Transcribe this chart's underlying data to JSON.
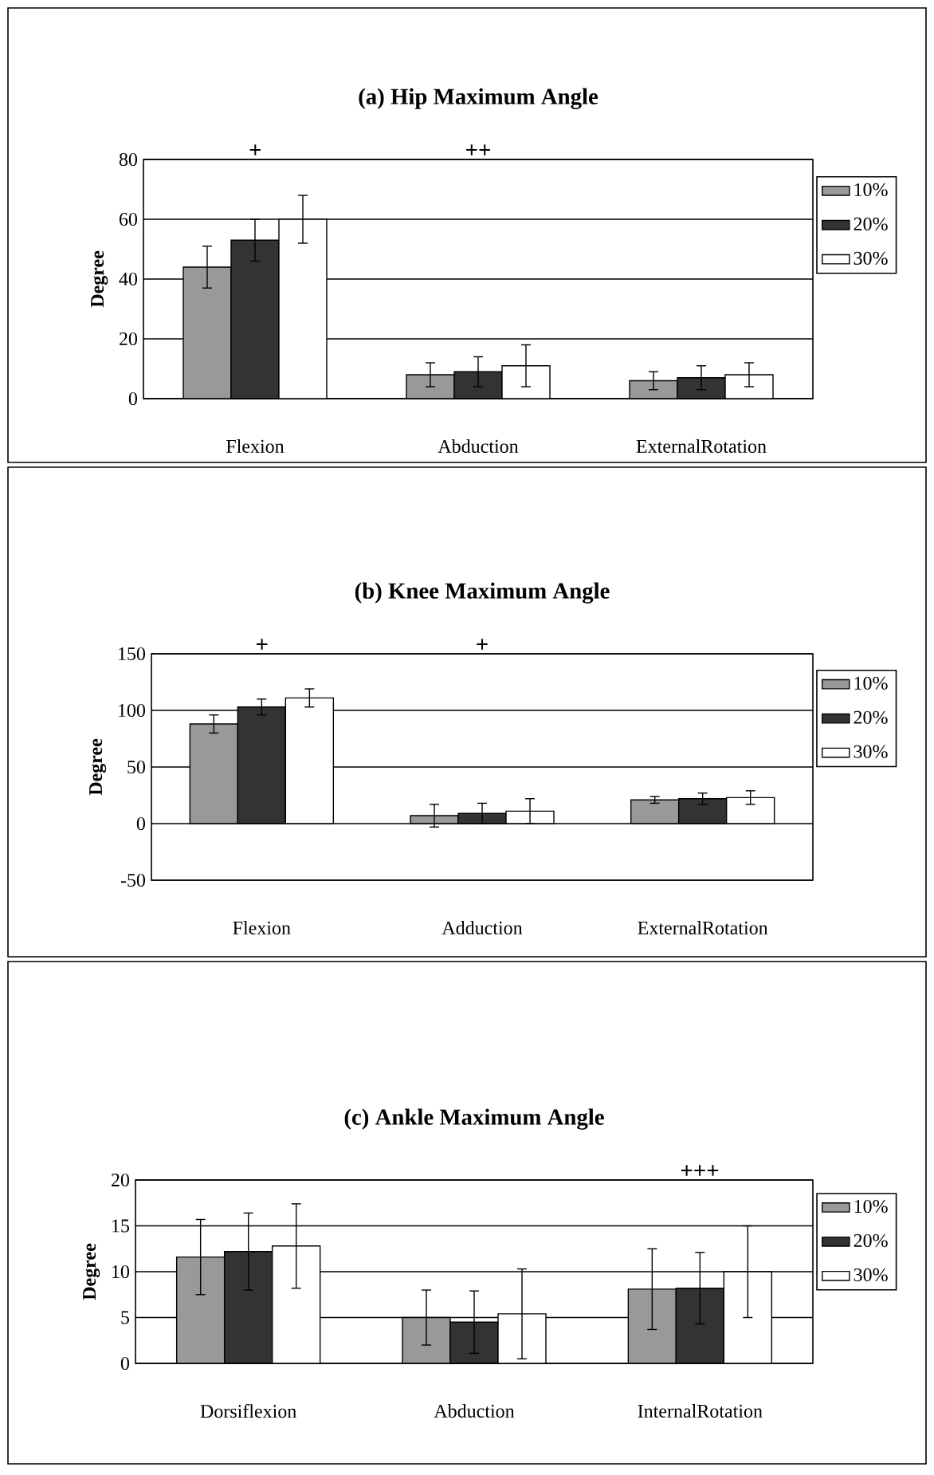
{
  "chart_data": [
    {
      "type": "bar",
      "title": "(a)  Hip Maximum Angle",
      "ylabel": "Degree",
      "categories": [
        "Flexion",
        "Abduction",
        "ExternalRotation"
      ],
      "ylim": [
        0,
        80
      ],
      "yticks": [
        0,
        20,
        40,
        60,
        80
      ],
      "grid": "y",
      "legend": "right",
      "series": [
        {
          "name": "10%",
          "color": "#999999",
          "values": [
            44,
            8,
            6
          ],
          "errors": [
            7,
            4,
            3
          ]
        },
        {
          "name": "20%",
          "color": "#333333",
          "values": [
            53,
            9,
            7
          ],
          "errors": [
            7,
            5,
            4
          ]
        },
        {
          "name": "30%",
          "color": "#ffffff",
          "values": [
            60,
            11,
            8
          ],
          "errors": [
            8,
            7,
            4
          ]
        }
      ],
      "annotations": [
        "+",
        "++"
      ]
    },
    {
      "type": "bar",
      "title": "(b)  Knee Maximum Angle",
      "ylabel": "Degree",
      "categories": [
        "Flexion",
        "Adduction",
        "ExternalRotation"
      ],
      "ylim": [
        -50,
        150
      ],
      "yticks": [
        -50,
        0,
        50,
        100,
        150
      ],
      "grid": "y",
      "legend": "right",
      "series": [
        {
          "name": "10%",
          "color": "#999999",
          "values": [
            88,
            7,
            21
          ],
          "errors": [
            8,
            10,
            3
          ]
        },
        {
          "name": "20%",
          "color": "#333333",
          "values": [
            103,
            9,
            22
          ],
          "errors": [
            7,
            9,
            5
          ]
        },
        {
          "name": "30%",
          "color": "#ffffff",
          "values": [
            111,
            11,
            23
          ],
          "errors": [
            8,
            11,
            6
          ]
        }
      ],
      "annotations": [
        "+",
        "+"
      ]
    },
    {
      "type": "bar",
      "title": "(c)  Ankle Maximum Angle",
      "ylabel": "Degree",
      "categories": [
        "Dorsiflexion",
        "Abduction",
        "InternalRotation"
      ],
      "ylim": [
        0,
        20
      ],
      "yticks": [
        0,
        5,
        10,
        15,
        20
      ],
      "grid": "y",
      "legend": "right",
      "series": [
        {
          "name": "10%",
          "color": "#999999",
          "values": [
            11.6,
            5,
            8.1
          ],
          "errors": [
            4.1,
            3,
            4.4
          ]
        },
        {
          "name": "20%",
          "color": "#333333",
          "values": [
            12.2,
            4.5,
            8.2
          ],
          "errors": [
            4.2,
            3.4,
            3.9
          ]
        },
        {
          "name": "30%",
          "color": "#ffffff",
          "values": [
            12.8,
            5.4,
            10
          ],
          "errors": [
            4.6,
            4.9,
            5
          ]
        }
      ],
      "annotations": [
        "+++"
      ]
    }
  ]
}
